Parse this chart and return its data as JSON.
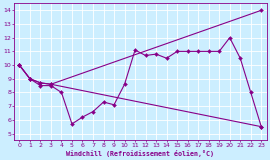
{
  "background_color": "#cceeff",
  "grid_color": "#aadddd",
  "line_color": "#880088",
  "xlabel": "Windchill (Refroidissement éolien,°C)",
  "xlim": [
    -0.5,
    23.5
  ],
  "ylim": [
    4.5,
    14.5
  ],
  "xticks": [
    0,
    1,
    2,
    3,
    4,
    5,
    6,
    7,
    8,
    9,
    10,
    11,
    12,
    13,
    14,
    15,
    16,
    17,
    18,
    19,
    20,
    21,
    22,
    23
  ],
  "yticks": [
    5,
    6,
    7,
    8,
    9,
    10,
    11,
    12,
    13,
    14
  ],
  "series1_x": [
    0,
    1,
    2,
    3,
    4,
    5,
    6,
    7,
    8,
    9,
    10,
    11,
    12,
    13,
    14,
    15,
    16,
    17,
    18,
    19,
    20,
    21,
    22,
    23
  ],
  "series1_y": [
    10.0,
    9.0,
    8.5,
    8.5,
    8.0,
    5.7,
    6.2,
    6.6,
    7.3,
    7.1,
    8.6,
    11.1,
    10.7,
    10.8,
    10.5,
    11.0,
    11.0,
    11.0,
    11.0,
    11.0,
    12.0,
    10.5,
    8.0,
    5.5
  ],
  "series2_x": [
    0,
    1,
    2,
    3,
    23
  ],
  "series2_y": [
    10.0,
    9.0,
    8.7,
    8.6,
    14.0
  ],
  "series3_x": [
    0,
    1,
    2,
    3,
    23
  ],
  "series3_y": [
    10.0,
    9.0,
    8.7,
    8.6,
    5.5
  ]
}
